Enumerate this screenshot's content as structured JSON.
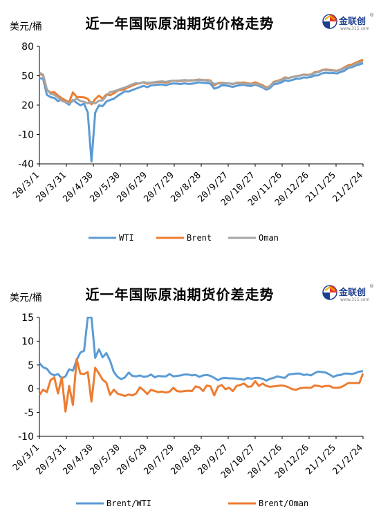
{
  "chart_data": [
    {
      "type": "line",
      "title": "近一年国际原油期货价格走势",
      "unit_label": "美元/桶",
      "logo": {
        "name": "金联创",
        "sub": "www.315.com"
      },
      "ylim": [
        -40,
        80
      ],
      "yticks": [
        "80",
        "50",
        "20",
        "-10",
        "-40"
      ],
      "x_tick_labels": [
        "20/3/1",
        "20/3/31",
        "20/4/30",
        "20/5/30",
        "20/6/29",
        "20/7/29",
        "20/8/28",
        "20/9/27",
        "20/10/27",
        "20/11/26",
        "20/12/26",
        "21/1/25",
        "21/2/24"
      ],
      "grid": false,
      "legend_position": "bottom",
      "colors": {
        "WTI": "#5b9bd5",
        "Brent": "#ed7d31",
        "Oman": "#a5a5a5"
      },
      "series": [
        {
          "name": "WTI",
          "values": [
            47.5,
            46.8,
            30.5,
            28.1,
            27.3,
            24.0,
            26.2,
            22.8,
            20.5,
            25.3,
            22.4,
            19.8,
            21.4,
            12.5,
            -37.6,
            12.3,
            19.8,
            18.9,
            23.6,
            25.3,
            26.4,
            29.4,
            31.8,
            34.1,
            33.9,
            35.4,
            36.9,
            38.2,
            39.7,
            38.3,
            40.1,
            40.5,
            40.8,
            41.2,
            40.2,
            41.5,
            42.1,
            41.9,
            41.5,
            42.2,
            41.6,
            41.8,
            42.6,
            43.3,
            42.8,
            42.5,
            41.9,
            36.8,
            37.9,
            40.2,
            40.1,
            39.4,
            38.6,
            39.7,
            40.3,
            40.8,
            39.8,
            39.5,
            41.0,
            39.6,
            38.0,
            35.8,
            37.4,
            41.4,
            41.8,
            43.1,
            45.3,
            44.6,
            45.7,
            46.8,
            47.0,
            48.2,
            48.1,
            48.7,
            50.3,
            50.6,
            52.3,
            53.2,
            52.6,
            52.8,
            52.3,
            53.8,
            55.1,
            57.9,
            58.7,
            60.3,
            61.5,
            62.7
          ]
        },
        {
          "name": "Brent",
          "values": [
            51.9,
            50.3,
            35.5,
            32.7,
            33.2,
            29.8,
            26.9,
            24.9,
            22.8,
            32.9,
            28.4,
            28.1,
            27.9,
            26.4,
            20.8,
            26.2,
            29.7,
            26.4,
            30.9,
            30.0,
            32.1,
            34.8,
            35.3,
            36.5,
            38.3,
            39.9,
            41.5,
            42.3,
            43.2,
            41.6,
            42.8,
            43.1,
            43.3,
            43.7,
            42.9,
            43.9,
            45.0,
            44.4,
            44.5,
            45.1,
            44.9,
            45.0,
            45.7,
            46.1,
            45.4,
            45.6,
            45.1,
            40.2,
            42.4,
            42.9,
            42.3,
            42.2,
            41.3,
            42.9,
            42.9,
            43.0,
            42.2,
            41.8,
            43.3,
            41.8,
            40.3,
            37.9,
            39.5,
            43.8,
            44.8,
            46.1,
            48.3,
            47.7,
            48.7,
            49.3,
            50.2,
            51.2,
            50.9,
            51.2,
            53.6,
            54.1,
            55.8,
            56.4,
            55.9,
            55.4,
            55.1,
            56.4,
            58.5,
            60.6,
            61.3,
            63.3,
            64.8,
            66.5
          ]
        },
        {
          "name": "Oman",
          "values": [
            53.2,
            51.0,
            36.2,
            31.5,
            30.6,
            27.8,
            24.3,
            23.1,
            22.2,
            23.9,
            26.7,
            24.1,
            23.4,
            21.8,
            23.2,
            21.7,
            24.5,
            24.8,
            29.6,
            33.3,
            34.1,
            35.3,
            36.8,
            38.0,
            39.6,
            41.3,
            42.5,
            42.0,
            43.5,
            42.7,
            43.0,
            43.6,
            44.0,
            44.3,
            43.7,
            44.5,
            44.8,
            44.9,
            45.1,
            45.6,
            45.3,
            45.5,
            45.2,
            45.8,
            45.9,
            44.9,
            44.6,
            41.6,
            42.0,
            42.1,
            42.4,
            42.0,
            41.8,
            42.3,
            42.1,
            41.9,
            41.8,
            41.3,
            41.7,
            41.2,
            39.2,
            37.3,
            39.1,
            43.3,
            44.2,
            45.4,
            47.7,
            47.4,
            48.8,
            49.5,
            50.1,
            51.0,
            50.7,
            51.0,
            52.9,
            53.5,
            55.4,
            55.8,
            55.3,
            55.2,
            54.9,
            56.1,
            57.8,
            59.4,
            60.1,
            62.1,
            63.6,
            64.2
          ]
        }
      ]
    },
    {
      "type": "line",
      "title": "近一年国际原油期货价差走势",
      "unit_label": "美元/桶",
      "logo": {
        "name": "金联创",
        "sub": "www.315.com"
      },
      "ylim": [
        -10,
        15
      ],
      "yticks": [
        "15",
        "10",
        "5",
        "0",
        "-5",
        "-10"
      ],
      "x_tick_labels": [
        "20/3/1",
        "20/3/31",
        "20/4/30",
        "20/5/30",
        "20/6/29",
        "20/7/29",
        "20/8/28",
        "20/9/27",
        "20/10/27",
        "20/11/26",
        "20/12/26",
        "21/1/25",
        "21/2/24"
      ],
      "grid": false,
      "legend_position": "bottom",
      "colors": {
        "Brent/WTI": "#5b9bd5",
        "Brent/Oman": "#ed7d31"
      },
      "series": [
        {
          "name": "Brent/WTI",
          "values": [
            5.4,
            4.5,
            4.2,
            3.2,
            2.8,
            3.1,
            2.2,
            2.6,
            4.1,
            3.8,
            6.0,
            7.6,
            8.0,
            15.0,
            15.0,
            6.5,
            8.3,
            6.6,
            7.5,
            5.9,
            3.5,
            2.5,
            2.0,
            2.4,
            3.4,
            2.7,
            2.6,
            2.8,
            2.5,
            2.6,
            3.0,
            2.4,
            2.7,
            2.6,
            2.6,
            3.1,
            2.6,
            2.7,
            2.8,
            3.0,
            3.0,
            2.8,
            2.9,
            2.5,
            2.8,
            2.9,
            2.7,
            2.3,
            1.8,
            2.2,
            2.3,
            2.2,
            2.2,
            2.1,
            2.0,
            1.9,
            2.3,
            2.1,
            2.3,
            2.3,
            2.1,
            1.7,
            2.1,
            2.3,
            2.6,
            2.4,
            2.3,
            3.0,
            3.1,
            3.2,
            3.2,
            2.9,
            3.0,
            2.8,
            3.3,
            3.6,
            3.5,
            3.4,
            3.0,
            2.5,
            2.8,
            2.9,
            3.2,
            3.2,
            3.1,
            3.3,
            3.6,
            3.7
          ]
        },
        {
          "name": "Brent/Oman",
          "values": [
            -1.3,
            -0.2,
            -0.7,
            1.8,
            2.4,
            -1.0,
            2.4,
            -4.8,
            0.6,
            -3.4,
            6.2,
            3.2,
            3.1,
            3.5,
            -2.7,
            4.4,
            3.2,
            1.9,
            1.3,
            -1.3,
            -0.2,
            -1.0,
            -1.3,
            -1.5,
            -1.2,
            -1.4,
            -1.0,
            0.3,
            -0.3,
            -1.1,
            -0.2,
            -0.5,
            -0.7,
            -0.6,
            -0.8,
            -0.6,
            0.2,
            -0.5,
            -0.6,
            -0.5,
            -0.4,
            -0.5,
            0.5,
            0.3,
            -0.5,
            0.7,
            0.5,
            -1.4,
            0.4,
            0.8,
            -0.1,
            0.2,
            -0.5,
            0.6,
            0.8,
            1.1,
            0.4,
            0.5,
            1.6,
            0.6,
            1.1,
            0.6,
            0.4,
            0.5,
            0.6,
            0.7,
            0.6,
            0.3,
            -0.1,
            -0.2,
            0.1,
            0.2,
            0.2,
            0.2,
            0.7,
            0.6,
            0.4,
            0.6,
            0.6,
            0.2,
            0.2,
            0.3,
            0.7,
            1.2,
            1.2,
            1.2,
            1.2,
            3.2
          ]
        }
      ]
    }
  ]
}
